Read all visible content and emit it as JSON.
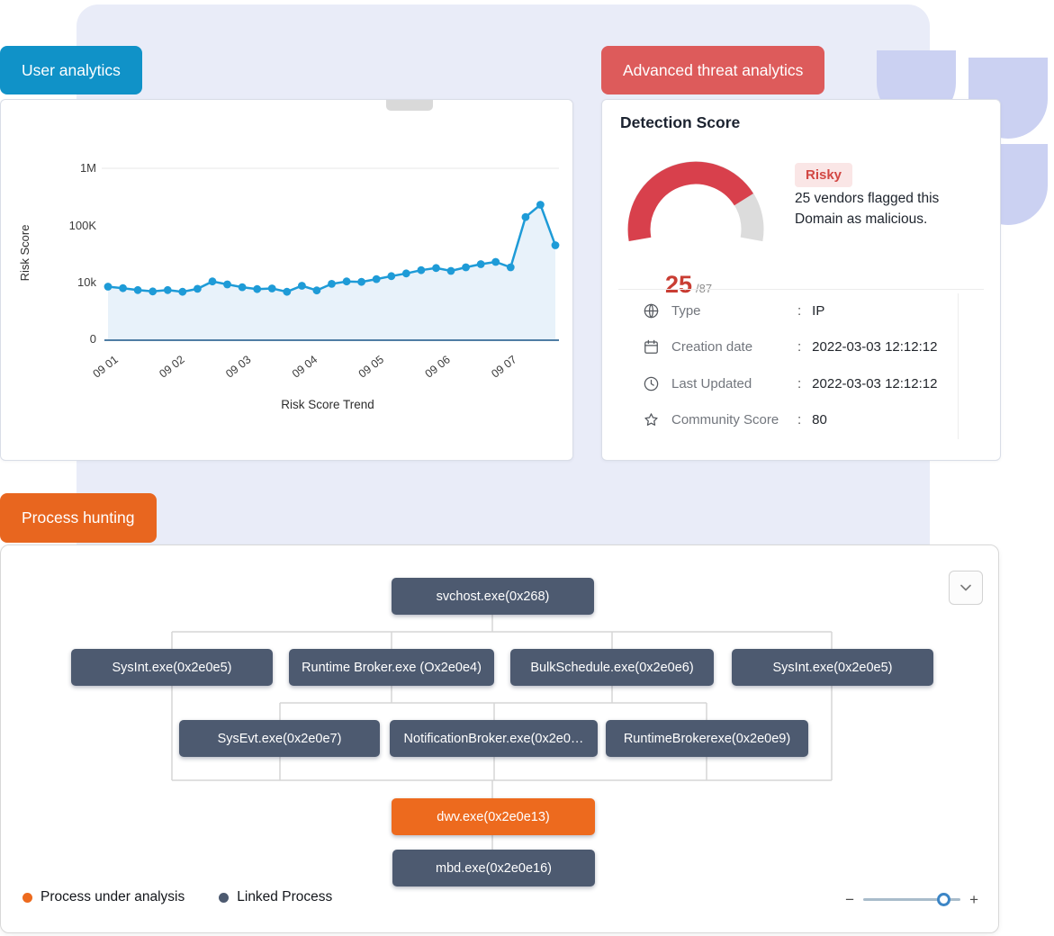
{
  "badges": {
    "user": "User analytics",
    "threat": "Advanced threat analytics",
    "process": "Process hunting"
  },
  "colors": {
    "user_badge": "#1092c8",
    "threat_badge": "#dd5b5b",
    "process_badge": "#e8661f",
    "node_linked": "#4d5a70",
    "node_analysis": "#ed6a1e"
  },
  "chart_data": {
    "type": "line",
    "title": "Risk Score Trend",
    "ylabel": "Risk Score",
    "y_scale": "log",
    "y_ticks": [
      "1M",
      "100K",
      "10k",
      "0"
    ],
    "x_ticks": [
      "09 01",
      "09 02",
      "09 03",
      "09 04",
      "09 05",
      "09 06",
      "09 07"
    ],
    "area_fill": "#d8e9f6",
    "series": [
      {
        "name": "Risk Score",
        "color": "#1e9bd7",
        "values": [
          8500,
          8000,
          7400,
          7000,
          7400,
          6900,
          7800,
          10500,
          9300,
          8300,
          7700,
          7900,
          6900,
          8800,
          7300,
          9500,
          10500,
          10300,
          11500,
          13000,
          14500,
          16500,
          18000,
          16000,
          18500,
          21000,
          23000,
          18500,
          140000,
          230000,
          45000
        ]
      }
    ]
  },
  "detection": {
    "title": "Detection Score",
    "score": "25",
    "score_denominator": "/87",
    "status": "Risky",
    "description": "25 vendors flagged this Domain as malicious.",
    "gauge": {
      "percent": 79,
      "color": "#d8404c",
      "track_color": "#dcdcdc"
    },
    "rows": [
      {
        "icon": "globe-icon",
        "label": "Type",
        "value": "IP"
      },
      {
        "icon": "calendar-icon",
        "label": "Creation date",
        "value": "2022-03-03 12:12:12"
      },
      {
        "icon": "clock-icon",
        "label": "Last Updated",
        "value": "2022-03-03 12:12:12"
      },
      {
        "icon": "star-icon",
        "label": "Community Score",
        "value": "80"
      }
    ]
  },
  "process_tree": {
    "nodes": [
      {
        "label": "svchost.exe(0x268)",
        "type": "linked"
      },
      {
        "label": "SysInt.exe(0x2e0e5)",
        "type": "linked"
      },
      {
        "label": "Runtime Broker.exe (Ox2e0e4)",
        "type": "linked"
      },
      {
        "label": "BulkSchedule.exe(0x2e0e6)",
        "type": "linked"
      },
      {
        "label": "SysInt.exe(0x2e0e5)",
        "type": "linked"
      },
      {
        "label": "SysEvt.exe(0x2e0e7)",
        "type": "linked"
      },
      {
        "label": "NotificationBroker.exe(0x2e0…",
        "type": "linked"
      },
      {
        "label": "RuntimeBrokerexe(0x2e0e9)",
        "type": "linked"
      },
      {
        "label": "dwv.exe(0x2e0e13)",
        "type": "analysis"
      },
      {
        "label": "mbd.exe(0x2e0e16)",
        "type": "linked"
      }
    ],
    "legend": [
      {
        "label": "Process under analysis",
        "color": "#ed6a1e"
      },
      {
        "label": "Linked Process",
        "color": "#4d5a70"
      }
    ],
    "zoom": {
      "minus": "−",
      "plus": "+"
    }
  }
}
